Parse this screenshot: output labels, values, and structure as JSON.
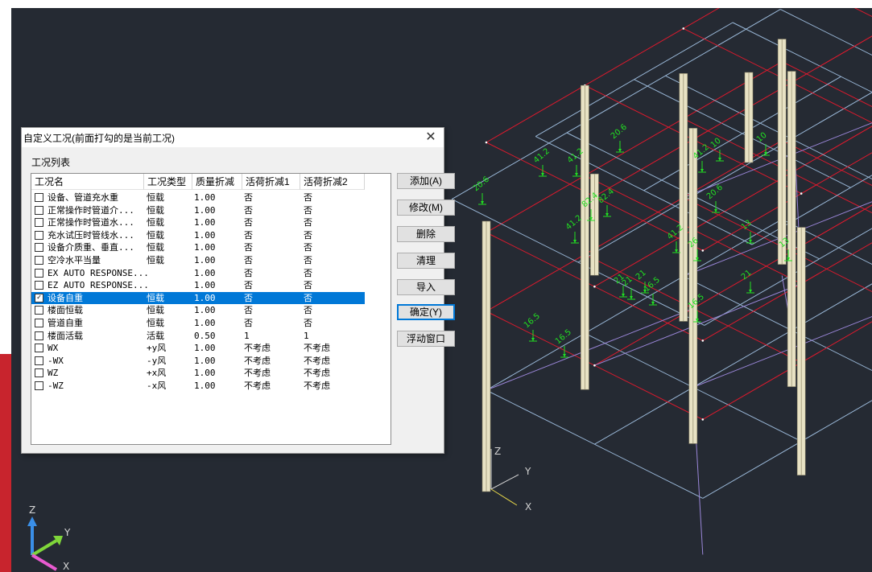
{
  "dialog": {
    "title": "自定义工况(前面打勾的是当前工况)",
    "group_label": "工况列表",
    "columns": [
      "工况名",
      "工况类型",
      "质量折减",
      "活荷折减1",
      "活荷折减2"
    ],
    "rows": [
      {
        "checked": false,
        "name": "设备、管道充水重",
        "type": "恒载",
        "mass": "1.00",
        "live1": "否",
        "live2": "否"
      },
      {
        "checked": false,
        "name": "正常操作时管道介...",
        "type": "恒载",
        "mass": "1.00",
        "live1": "否",
        "live2": "否"
      },
      {
        "checked": false,
        "name": "正常操作时管道水...",
        "type": "恒载",
        "mass": "1.00",
        "live1": "否",
        "live2": "否"
      },
      {
        "checked": false,
        "name": "充水试压时管线水...",
        "type": "恒载",
        "mass": "1.00",
        "live1": "否",
        "live2": "否"
      },
      {
        "checked": false,
        "name": "设备介质重、垂直...",
        "type": "恒载",
        "mass": "1.00",
        "live1": "否",
        "live2": "否"
      },
      {
        "checked": false,
        "name": "空冷水平当量",
        "type": "恒载",
        "mass": "1.00",
        "live1": "否",
        "live2": "否"
      },
      {
        "checked": false,
        "name": "EX AUTO RESPONSE...",
        "type": "",
        "mass": "1.00",
        "live1": "否",
        "live2": "否"
      },
      {
        "checked": false,
        "name": "EZ AUTO RESPONSE...",
        "type": "",
        "mass": "1.00",
        "live1": "否",
        "live2": "否"
      },
      {
        "checked": true,
        "name": "设备自重",
        "type": "恒载",
        "mass": "1.00",
        "live1": "否",
        "live2": "否"
      },
      {
        "checked": false,
        "name": "楼面恒载",
        "type": "恒载",
        "mass": "1.00",
        "live1": "否",
        "live2": "否"
      },
      {
        "checked": false,
        "name": "管道自重",
        "type": "恒载",
        "mass": "1.00",
        "live1": "否",
        "live2": "否"
      },
      {
        "checked": false,
        "name": "楼面活载",
        "type": "活载",
        "mass": "0.50",
        "live1": "1",
        "live2": "1"
      },
      {
        "checked": false,
        "name": "WX",
        "type": "+y风",
        "mass": "1.00",
        "live1": "不考虑",
        "live2": "不考虑"
      },
      {
        "checked": false,
        "name": "-WX",
        "type": "-y风",
        "mass": "1.00",
        "live1": "不考虑",
        "live2": "不考虑"
      },
      {
        "checked": false,
        "name": "WZ",
        "type": "+x风",
        "mass": "1.00",
        "live1": "不考虑",
        "live2": "不考虑"
      },
      {
        "checked": false,
        "name": "-WZ",
        "type": "-x风",
        "mass": "1.00",
        "live1": "不考虑",
        "live2": "不考虑"
      }
    ],
    "selected_index": 8,
    "buttons": [
      {
        "id": "add",
        "label": "添加(A)"
      },
      {
        "id": "modify",
        "label": "修改(M)"
      },
      {
        "id": "delete",
        "label": "删除"
      },
      {
        "id": "clear",
        "label": "清理"
      },
      {
        "id": "import",
        "label": "导入"
      },
      {
        "id": "ok",
        "label": "确定(Y)"
      },
      {
        "id": "float",
        "label": "浮动窗口"
      }
    ],
    "close_glyph": "✕"
  },
  "viewport": {
    "background": "#252a33",
    "load_labels": [
      "10",
      "10",
      "20.6",
      "41.2",
      "41.2",
      "41.2",
      "20.6",
      "82.4",
      "82.4",
      "20.6",
      "41.2",
      "41.2",
      "26",
      "13",
      "13",
      "21",
      "21",
      "21",
      "21",
      "16.5",
      "16.5",
      "16.5",
      "16.5"
    ],
    "axis_labels": {
      "x": "X",
      "y": "Y",
      "z": "Z"
    }
  },
  "colors": {
    "grid_red": "#e0192d",
    "grid_blue": "#9ab8d8",
    "grid_purple": "#9a86d8",
    "column": "#e8e2c4",
    "load_green": "#22e022",
    "selection": "#0078d7"
  }
}
